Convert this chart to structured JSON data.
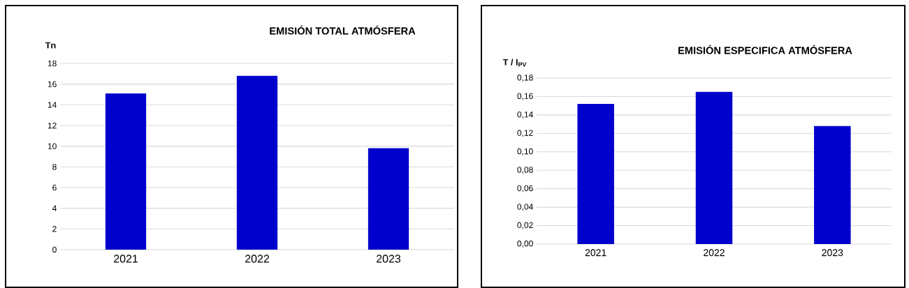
{
  "chart_data": [
    {
      "type": "bar",
      "title": "EMISIÓN TOTAL ATMÓSFERA",
      "ylabel": "Tn",
      "categories": [
        "2021",
        "2022",
        "2023"
      ],
      "values": [
        15.1,
        16.8,
        9.8
      ],
      "color": "#0000cc",
      "ylim": [
        0,
        18
      ],
      "yticks": [
        0,
        2,
        4,
        6,
        8,
        10,
        12,
        14,
        16,
        18
      ],
      "grid": "y"
    },
    {
      "type": "bar",
      "title": "EMISIÓN ESPECIFICA ATMÓSFERA",
      "ylabel": "T / I$_{PV}$",
      "categories": [
        "2021",
        "2022",
        "2023"
      ],
      "values": [
        0.152,
        0.165,
        0.128
      ],
      "color": "#0000cc",
      "ylim": [
        0,
        0.18
      ],
      "yticks": [
        {
          "value": 0,
          "label": "0,00"
        },
        {
          "value": 0.02,
          "label": "0,02"
        },
        {
          "value": 0.04,
          "label": "0,04"
        },
        {
          "value": 0.06,
          "label": "0,06"
        },
        {
          "value": 0.08,
          "label": "0,08"
        },
        {
          "value": 0.1,
          "label": "0,10"
        },
        {
          "value": 0.12,
          "label": "0,12"
        },
        {
          "value": 0.14,
          "label": "0,14"
        },
        {
          "value": 0.16,
          "label": "0,16"
        },
        {
          "value": 0.18,
          "label": "0,18"
        }
      ],
      "grid": "y"
    }
  ]
}
